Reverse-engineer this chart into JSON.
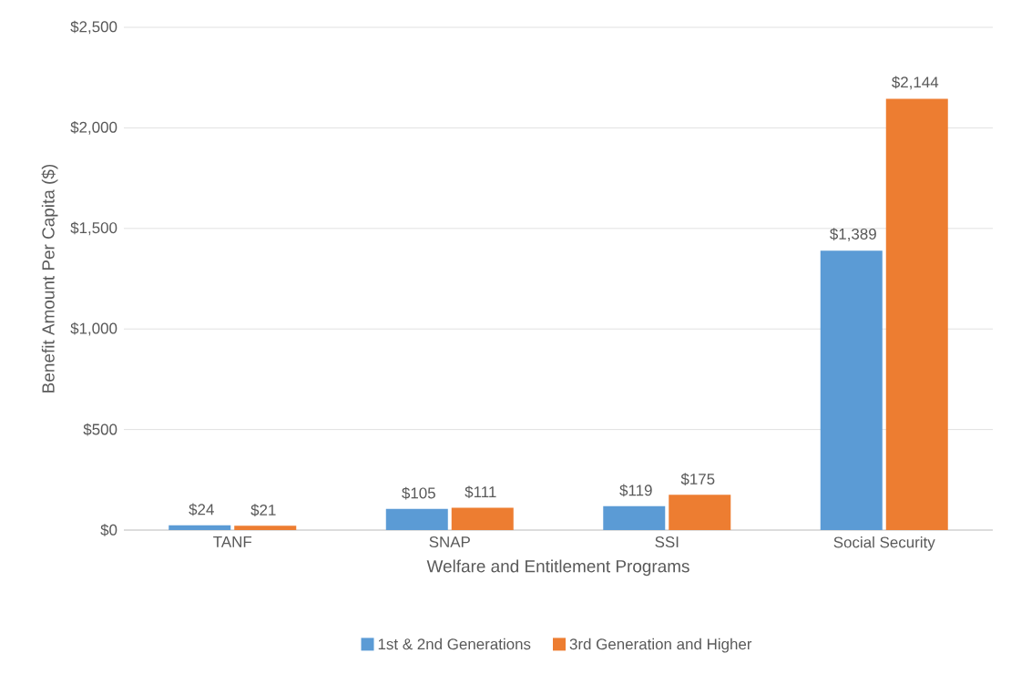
{
  "chart_data": {
    "type": "bar",
    "categories": [
      "TANF",
      "SNAP",
      "SSI",
      "Social Security"
    ],
    "xlabel": "Welfare and Entitlement Programs",
    "ylabel": "Benefit Amount Per Capita ($)",
    "series": [
      {
        "name": "1st & 2nd Generations",
        "color": "#5b9bd5",
        "values": [
          24,
          105,
          119,
          1389
        ],
        "value_labels": [
          "$24",
          "$105",
          "$119",
          "$1,389"
        ]
      },
      {
        "name": "3rd Generation and Higher",
        "color": "#ed7d31",
        "values": [
          21,
          111,
          175,
          2144
        ],
        "value_labels": [
          "$21",
          "$111",
          "$175",
          "$2,144"
        ]
      }
    ],
    "ylim": [
      0,
      2500
    ],
    "yticks": [
      {
        "value": 0,
        "label": "$0"
      },
      {
        "value": 500,
        "label": "$500"
      },
      {
        "value": 1000,
        "label": "$1,000"
      },
      {
        "value": 1500,
        "label": "$1,500"
      },
      {
        "value": 2000,
        "label": "$2,000"
      },
      {
        "value": 2500,
        "label": "$2,500"
      }
    ],
    "grid": "y",
    "legend": "bottom"
  }
}
